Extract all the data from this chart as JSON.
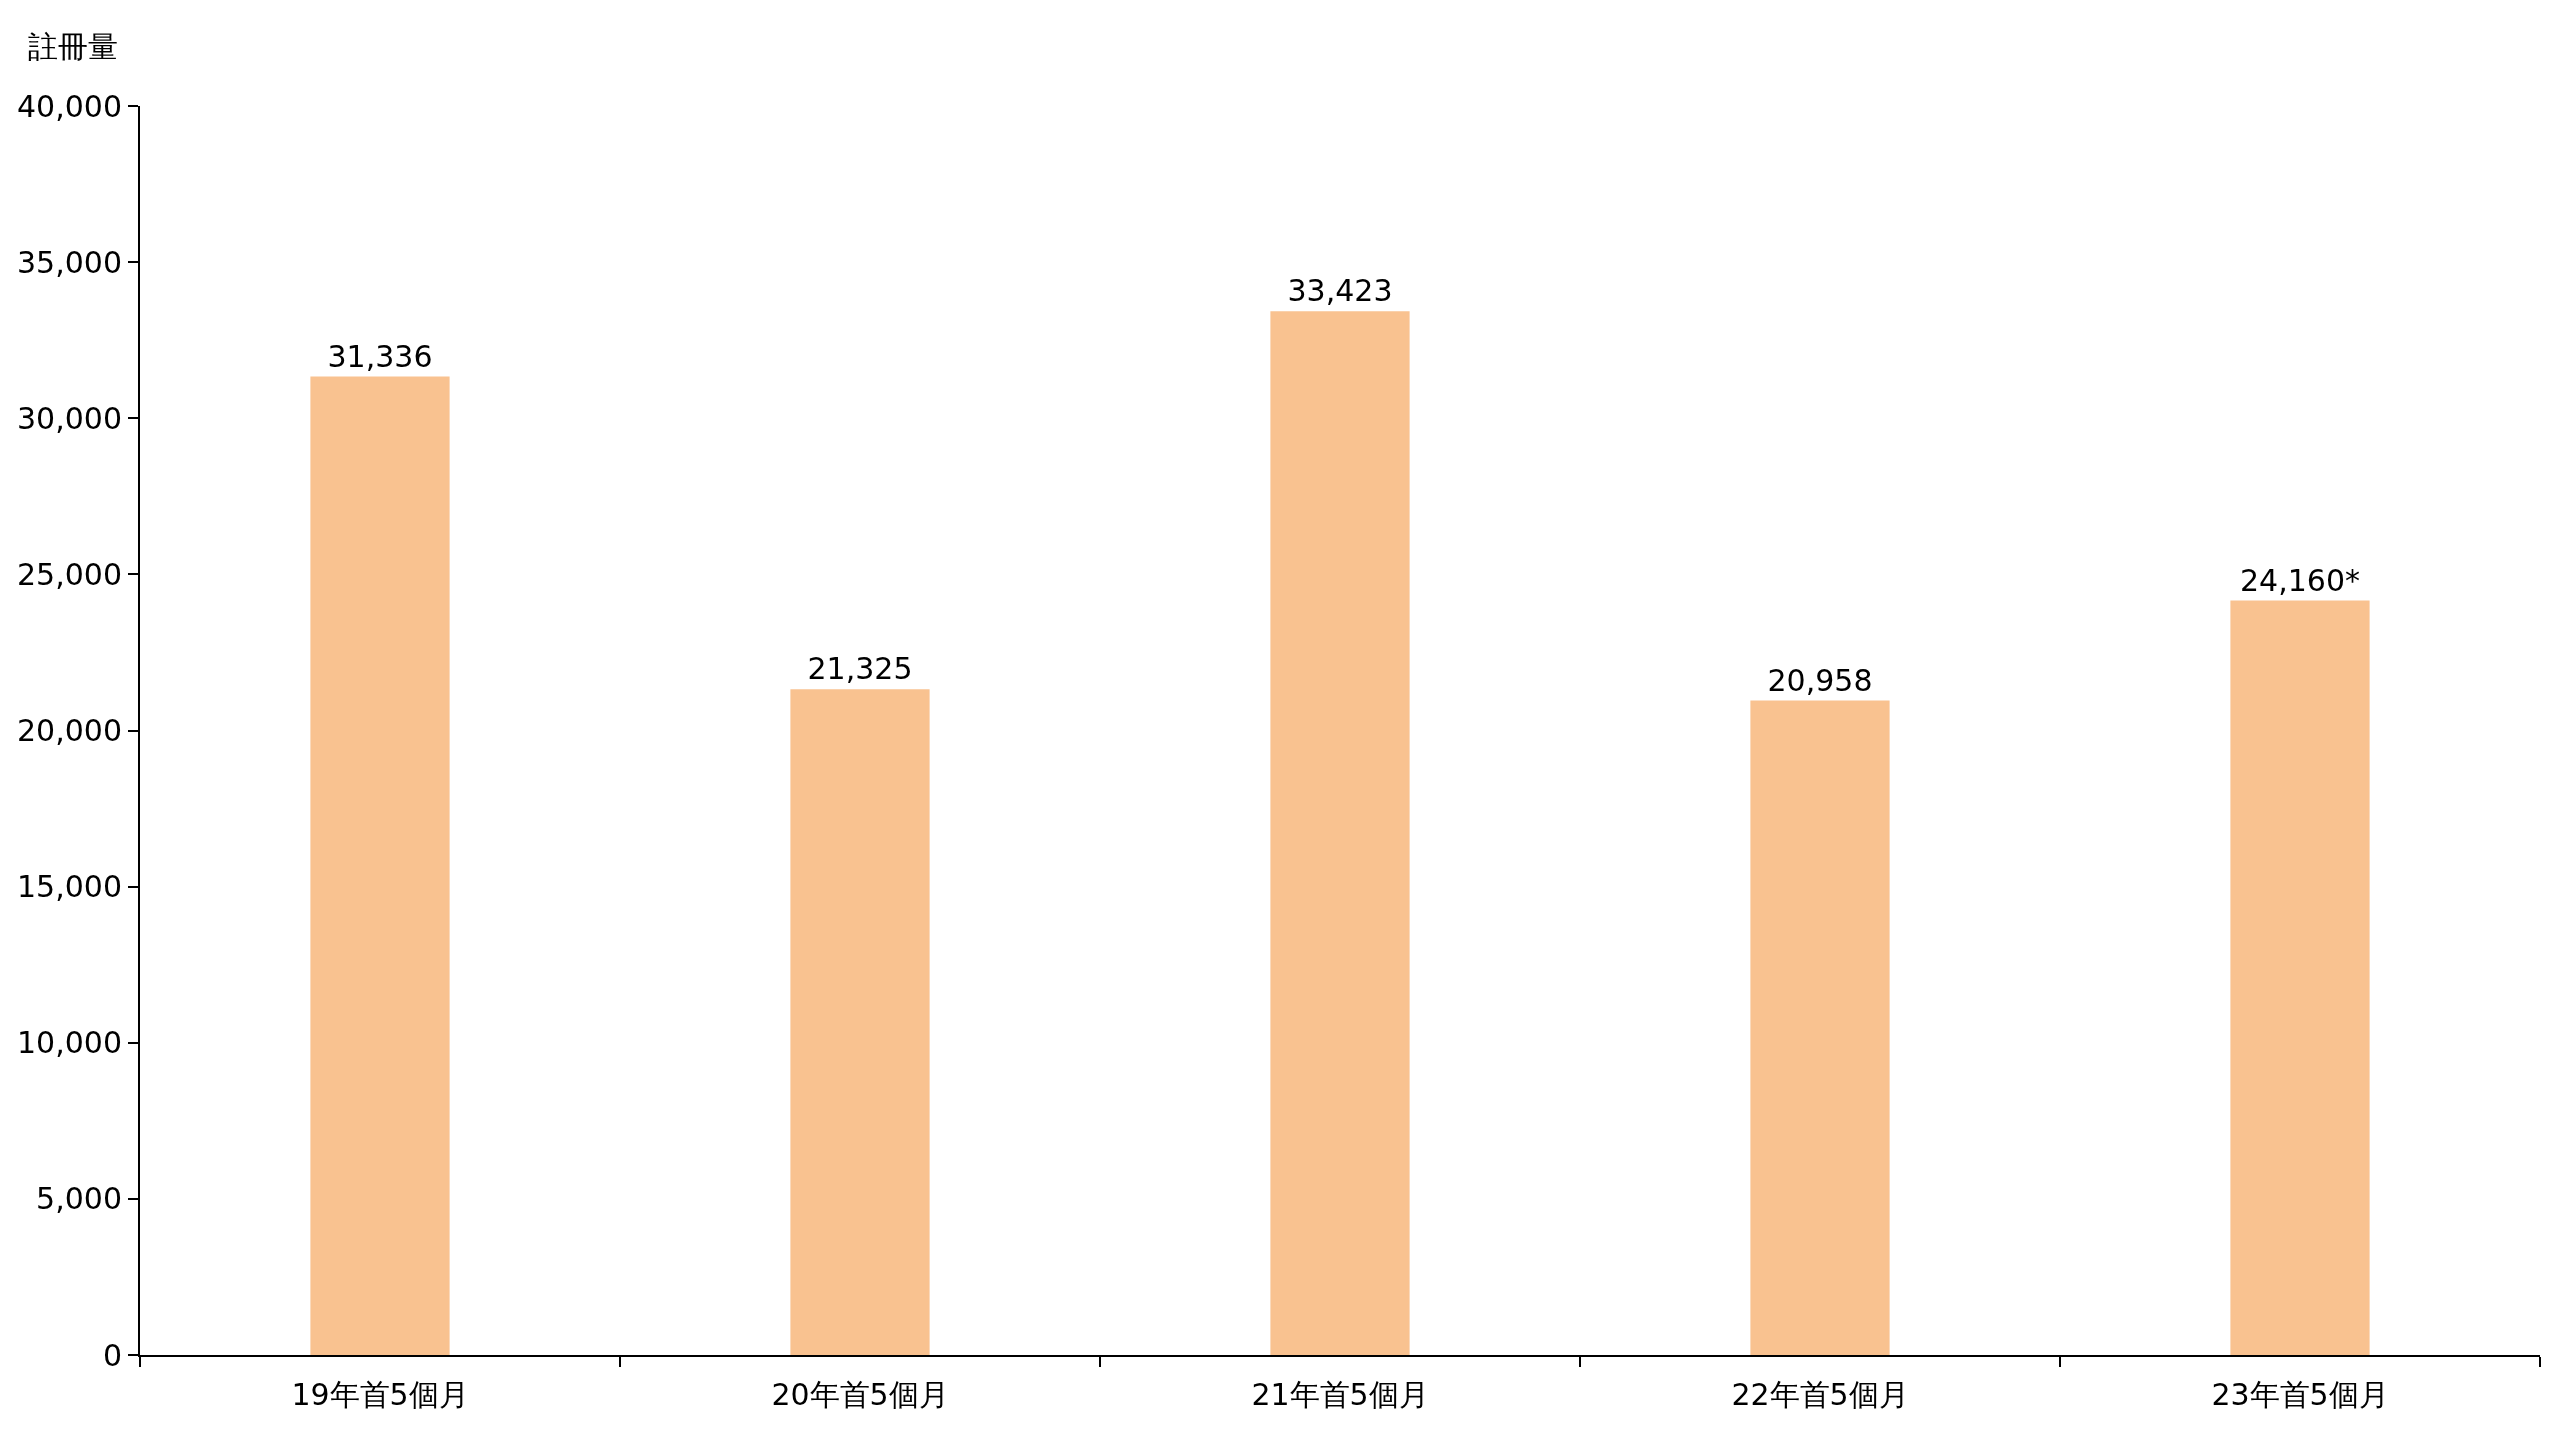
{
  "chart_data": {
    "type": "bar",
    "ylabel": "註冊量",
    "categories": [
      "19年首5個月",
      "20年首5個月",
      "21年首5個月",
      "22年首5個月",
      "23年首5個月"
    ],
    "values": [
      31336,
      21325,
      33423,
      20958,
      24160
    ],
    "value_labels": [
      "31,336",
      "21,325",
      "33,423",
      "20,958",
      "24,160*"
    ],
    "color": "#f9c290",
    "ylim": [
      0,
      40000
    ],
    "yticks": [
      {
        "value": 0,
        "label": "0"
      },
      {
        "value": 5000,
        "label": "5,000"
      },
      {
        "value": 10000,
        "label": "10,000"
      },
      {
        "value": 15000,
        "label": "15,000"
      },
      {
        "value": 20000,
        "label": "20,000"
      },
      {
        "value": 25000,
        "label": "25,000"
      },
      {
        "value": 30000,
        "label": "30,000"
      },
      {
        "value": 35000,
        "label": "35,000"
      },
      {
        "value": 40000,
        "label": "40,000"
      }
    ],
    "grid": false
  }
}
